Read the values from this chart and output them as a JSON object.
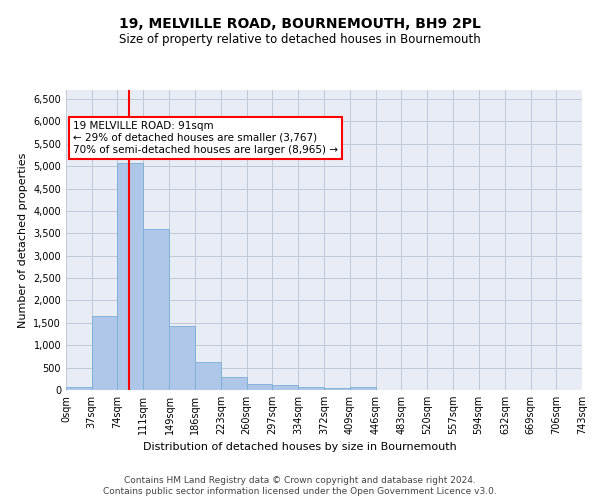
{
  "title": "19, MELVILLE ROAD, BOURNEMOUTH, BH9 2PL",
  "subtitle": "Size of property relative to detached houses in Bournemouth",
  "xlabel": "Distribution of detached houses by size in Bournemouth",
  "ylabel": "Number of detached properties",
  "footer_line1": "Contains HM Land Registry data © Crown copyright and database right 2024.",
  "footer_line2": "Contains public sector information licensed under the Open Government Licence v3.0.",
  "bar_edges": [
    0,
    37,
    74,
    111,
    149,
    186,
    223,
    260,
    297,
    334,
    372,
    409,
    446,
    483,
    520,
    557,
    594,
    632,
    669,
    706,
    743
  ],
  "bar_heights": [
    75,
    1650,
    5075,
    3600,
    1420,
    620,
    300,
    145,
    110,
    75,
    55,
    75,
    0,
    0,
    0,
    0,
    0,
    0,
    0,
    0
  ],
  "bar_color": "#aec6e8",
  "bar_edge_color": "#7aadd4",
  "vline_x": 91,
  "vline_color": "red",
  "annotation_text": "19 MELVILLE ROAD: 91sqm\n← 29% of detached houses are smaller (3,767)\n70% of semi-detached houses are larger (8,965) →",
  "annotation_box_color": "red",
  "annotation_text_color": "black",
  "annotation_bg": "white",
  "ylim": [
    0,
    6700
  ],
  "yticks": [
    0,
    500,
    1000,
    1500,
    2000,
    2500,
    3000,
    3500,
    4000,
    4500,
    5000,
    5500,
    6000,
    6500
  ],
  "grid_color": "#c0c8d8",
  "bg_color": "#e8edf5",
  "title_fontsize": 10,
  "subtitle_fontsize": 8.5,
  "axis_label_fontsize": 8,
  "tick_fontsize": 7,
  "footer_fontsize": 6.5,
  "annotation_fontsize": 7.5
}
